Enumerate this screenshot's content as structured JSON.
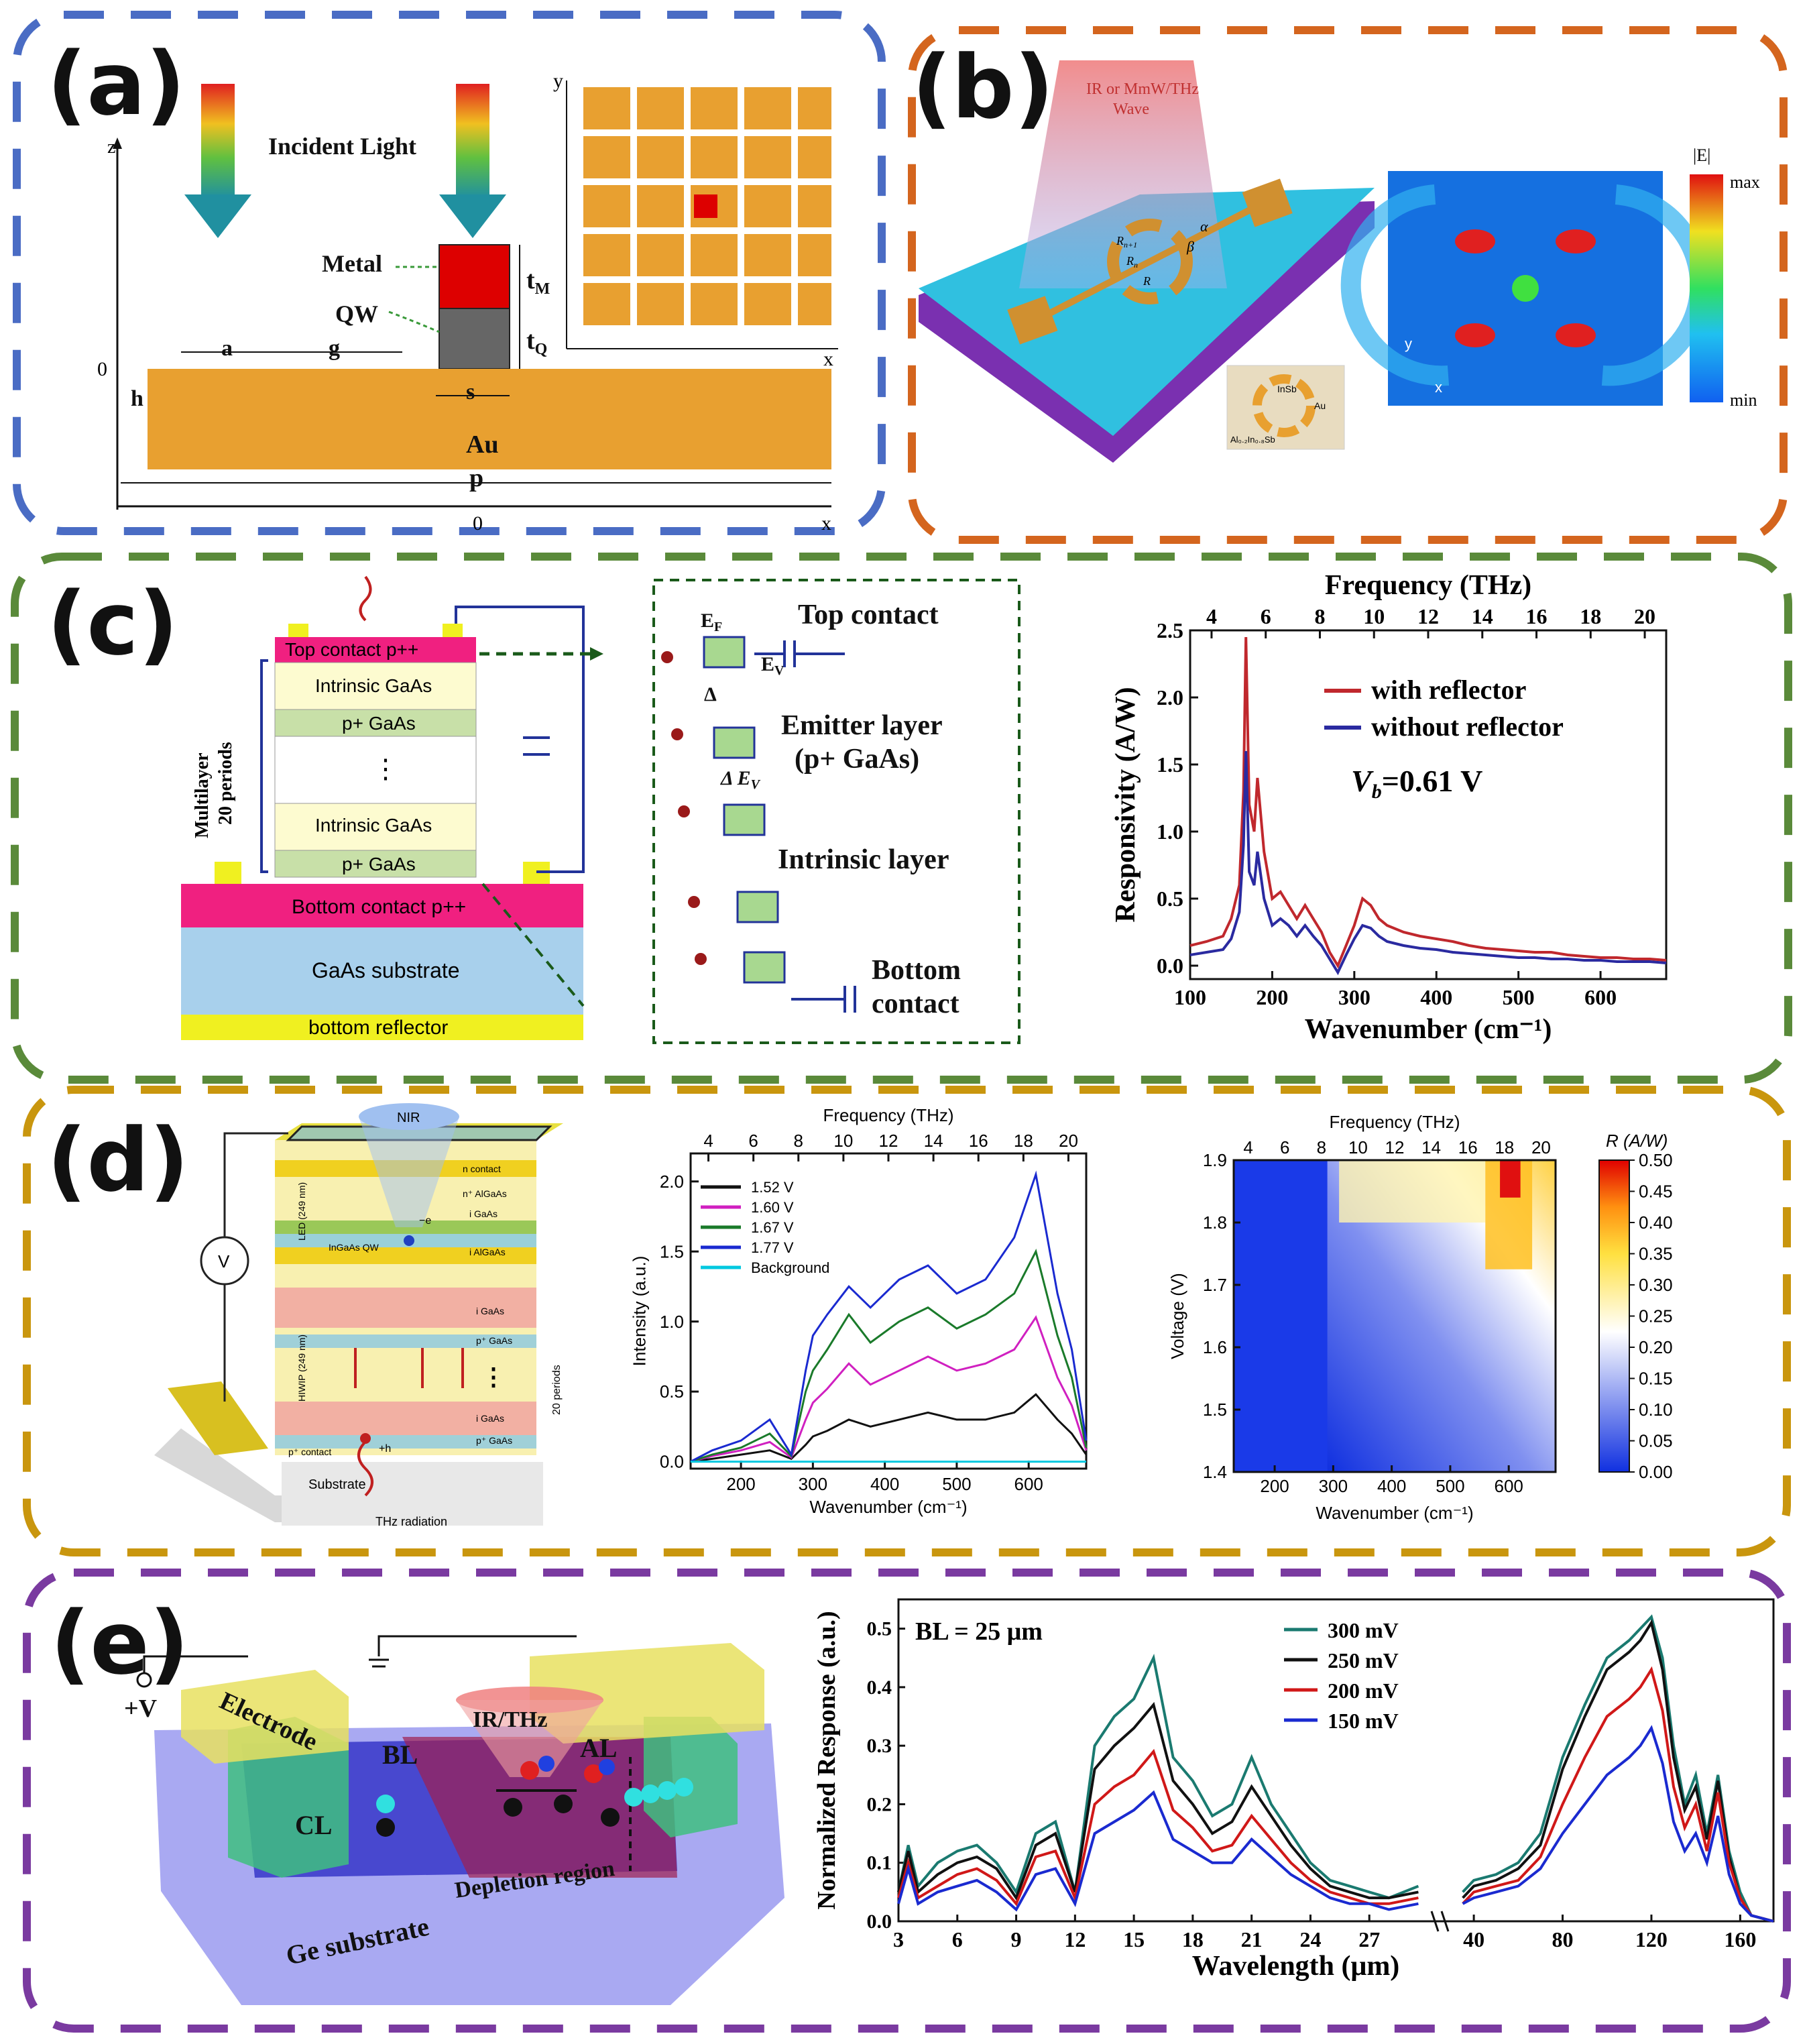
{
  "panels": {
    "a": {
      "label": "(a)",
      "incident_light": "Incident Light",
      "metal": "Metal",
      "qw": "QW",
      "au": "Au",
      "axis": {
        "z": "z",
        "zero": "0",
        "x": "x",
        "x_zero": "0",
        "y": "y",
        "inset_x": "x"
      },
      "dims": {
        "a": "a",
        "g": "g",
        "h": "h",
        "s": "s",
        "p": "p",
        "tM": "t",
        "tM_sub": "M",
        "tQ": "t",
        "tQ_sub": "Q"
      }
    },
    "b": {
      "label": "(b)",
      "wave": [
        "IR or MmW/THz",
        "Wave"
      ],
      "params": {
        "alpha": "α",
        "beta": "β",
        "rn": "R",
        "rn_sub": "n+1",
        "r0": "R",
        "r0_sub": "n",
        "r": "R"
      },
      "inset": {
        "insb": "InSb",
        "au": "Au",
        "al": "Al₀.₂In₀.₈Sb"
      },
      "field_title": "|E|",
      "field_max": "max",
      "field_min": "min",
      "axis_x": "x",
      "axis_y": "y"
    },
    "c": {
      "label": "(c)",
      "layers": {
        "top_contact": "Top contact p++",
        "intrinsic1": "Intrinsic GaAs",
        "p1": "p+ GaAs",
        "dots": "⋮",
        "intrinsic2": "Intrinsic GaAs",
        "p2": "p+ GaAs",
        "bottom_contact": "Bottom contact p++",
        "substrate": "GaAs substrate",
        "reflector": "bottom reflector"
      },
      "multilayer": [
        "Multilayer",
        "20 periods"
      ],
      "band": {
        "top_contact": "Top contact",
        "emitter": [
          "Emitter layer",
          "(p+ GaAs)"
        ],
        "intrinsic": "Intrinsic layer",
        "bottom": [
          "Bottom",
          "contact"
        ],
        "ef": "E",
        "ef_sub": "F",
        "ev": "E",
        "ev_sub": "V",
        "delta": "Δ",
        "delta_ev": "Δ E",
        "delta_ev_sub": "V"
      }
    },
    "d": {
      "label": "(d)",
      "device": {
        "nir": "NIR",
        "v": "V",
        "n_contact": "n contact",
        "n_algaas": "n⁺ AlGaAs",
        "igaas": "i GaAs",
        "ingaas_qw": "InGaAs QW",
        "i_algaas": "i AlGaAs",
        "pgaas": "p⁺ GaAs",
        "led": "LED (249 nm)",
        "hiwip": "HIWIP (249 nm)",
        "periods": "20 periods",
        "p_contact": "p⁺ contact",
        "substrate": "Substrate",
        "thz": "THz radiation",
        "e": "−e",
        "h": "+h"
      }
    },
    "e": {
      "label": "(e)",
      "device": {
        "v": "+V",
        "electrode": "Electrode",
        "bl": "BL",
        "cl": "CL",
        "al": "AL",
        "irthz": "IR/THz",
        "depletion": "Depletion region",
        "substrate": "Ge substrate"
      }
    }
  },
  "colors": {
    "frame_a": "#4a6cc4",
    "frame_b": "#d4651e",
    "frame_c": "#5a8a3a",
    "frame_d": "#c9960e",
    "frame_e": "#7a3aa0",
    "gold": "#e8a030",
    "metal_red": "#dd0000",
    "qw_gray": "#666666"
  },
  "chart_data": [
    {
      "id": "c",
      "type": "line",
      "title": "",
      "xlabel": "Wavenumber (cm⁻¹)",
      "ylabel": "Responsivity (A/W)",
      "top_xlabel": "Frequency (THz)",
      "xlim": [
        100,
        680
      ],
      "ylim": [
        -0.1,
        2.5
      ],
      "xticks": [
        100,
        200,
        300,
        400,
        500,
        600
      ],
      "yticks": [
        0.0,
        0.5,
        1.0,
        1.5,
        2.0,
        2.5
      ],
      "top_ticks": [
        4,
        6,
        8,
        10,
        12,
        14,
        16,
        18,
        20
      ],
      "annotation": "V",
      "annotation_sub": "b",
      "annotation_rest": "=0.61 V",
      "series": [
        {
          "name": "with reflector",
          "color": "#c0282d",
          "x": [
            100,
            120,
            140,
            150,
            160,
            165,
            168,
            172,
            178,
            182,
            190,
            200,
            210,
            220,
            230,
            240,
            250,
            260,
            270,
            280,
            290,
            300,
            310,
            320,
            330,
            340,
            360,
            380,
            400,
            420,
            440,
            460,
            480,
            500,
            520,
            540,
            560,
            580,
            600,
            620,
            640,
            660,
            680
          ],
          "y": [
            0.15,
            0.18,
            0.22,
            0.35,
            0.6,
            1.3,
            2.45,
            1.2,
            1.0,
            1.4,
            0.85,
            0.5,
            0.55,
            0.45,
            0.35,
            0.45,
            0.35,
            0.25,
            0.1,
            0.0,
            0.15,
            0.3,
            0.5,
            0.45,
            0.35,
            0.3,
            0.25,
            0.22,
            0.2,
            0.18,
            0.15,
            0.13,
            0.12,
            0.11,
            0.1,
            0.1,
            0.08,
            0.07,
            0.06,
            0.06,
            0.05,
            0.05,
            0.04
          ]
        },
        {
          "name": "without reflector",
          "color": "#2a2aa0",
          "x": [
            100,
            120,
            140,
            150,
            160,
            165,
            168,
            172,
            178,
            182,
            190,
            200,
            210,
            220,
            230,
            240,
            250,
            260,
            270,
            280,
            290,
            300,
            310,
            320,
            330,
            340,
            360,
            380,
            400,
            420,
            440,
            460,
            480,
            500,
            520,
            540,
            560,
            580,
            600,
            620,
            640,
            660,
            680
          ],
          "y": [
            0.08,
            0.1,
            0.12,
            0.2,
            0.4,
            0.9,
            1.6,
            0.7,
            0.6,
            0.85,
            0.5,
            0.3,
            0.35,
            0.3,
            0.22,
            0.3,
            0.22,
            0.15,
            0.05,
            -0.05,
            0.08,
            0.2,
            0.3,
            0.28,
            0.22,
            0.18,
            0.15,
            0.13,
            0.12,
            0.1,
            0.09,
            0.08,
            0.07,
            0.06,
            0.06,
            0.05,
            0.05,
            0.04,
            0.04,
            0.03,
            0.03,
            0.03,
            0.02
          ]
        }
      ]
    },
    {
      "id": "d1",
      "type": "line",
      "xlabel": "Wavenumber (cm⁻¹)",
      "ylabel": "Intensity (a.u.)",
      "top_xlabel": "Frequency (THz)",
      "xlim": [
        130,
        680
      ],
      "ylim": [
        -0.05,
        2.2
      ],
      "xticks": [
        200,
        300,
        400,
        500,
        600
      ],
      "yticks": [
        0.0,
        0.5,
        1.0,
        1.5,
        2.0
      ],
      "top_ticks": [
        4,
        6,
        8,
        10,
        12,
        14,
        16,
        18,
        20
      ],
      "series": [
        {
          "name": "1.52 V",
          "color": "#111111",
          "x": [
            130,
            160,
            200,
            240,
            270,
            290,
            300,
            320,
            350,
            380,
            420,
            460,
            500,
            540,
            580,
            610,
            640,
            660,
            680
          ],
          "y": [
            0.0,
            0.02,
            0.05,
            0.08,
            0.02,
            0.12,
            0.18,
            0.22,
            0.3,
            0.25,
            0.3,
            0.35,
            0.3,
            0.3,
            0.35,
            0.48,
            0.3,
            0.2,
            0.05
          ]
        },
        {
          "name": "1.60 V",
          "color": "#d020c0",
          "x": [
            130,
            160,
            200,
            240,
            270,
            290,
            300,
            320,
            350,
            380,
            420,
            460,
            500,
            540,
            580,
            610,
            640,
            660,
            680
          ],
          "y": [
            0.0,
            0.04,
            0.08,
            0.14,
            0.03,
            0.3,
            0.42,
            0.52,
            0.7,
            0.55,
            0.65,
            0.75,
            0.65,
            0.7,
            0.8,
            1.03,
            0.6,
            0.4,
            0.08
          ]
        },
        {
          "name": "1.67 V",
          "color": "#1a7a2a",
          "x": [
            130,
            160,
            200,
            240,
            270,
            290,
            300,
            320,
            350,
            380,
            420,
            460,
            500,
            540,
            580,
            610,
            640,
            660,
            680
          ],
          "y": [
            0.0,
            0.05,
            0.1,
            0.2,
            0.04,
            0.5,
            0.65,
            0.8,
            1.05,
            0.85,
            1.0,
            1.1,
            0.95,
            1.05,
            1.2,
            1.5,
            0.9,
            0.6,
            0.1
          ]
        },
        {
          "name": "1.77 V",
          "color": "#1a2ad0",
          "x": [
            130,
            160,
            200,
            240,
            270,
            290,
            300,
            320,
            350,
            380,
            420,
            460,
            500,
            540,
            580,
            610,
            640,
            660,
            680
          ],
          "y": [
            0.0,
            0.08,
            0.15,
            0.3,
            0.05,
            0.65,
            0.9,
            1.05,
            1.25,
            1.1,
            1.3,
            1.4,
            1.2,
            1.3,
            1.6,
            2.05,
            1.2,
            0.8,
            0.15
          ]
        },
        {
          "name": "Background",
          "color": "#00c8e0",
          "x": [
            130,
            680
          ],
          "y": [
            0.0,
            0.0
          ]
        }
      ]
    },
    {
      "id": "d2",
      "type": "heatmap",
      "xlabel": "Wavenumber (cm⁻¹)",
      "ylabel": "Voltage (V)",
      "top_xlabel": "Frequency (THz)",
      "colorbar_label": "R (A/W)",
      "xlim": [
        130,
        680
      ],
      "ylim": [
        1.4,
        1.9
      ],
      "xticks": [
        200,
        300,
        400,
        500,
        600
      ],
      "yticks": [
        1.4,
        1.5,
        1.6,
        1.7,
        1.8,
        1.9
      ],
      "top_ticks": [
        4,
        6,
        8,
        10,
        12,
        14,
        16,
        18,
        20
      ],
      "cbar_ticks": [
        0.0,
        0.05,
        0.1,
        0.15,
        0.2,
        0.25,
        0.3,
        0.35,
        0.4,
        0.45,
        0.5
      ],
      "clim": [
        0,
        0.5
      ]
    },
    {
      "id": "e",
      "type": "line",
      "xlabel": "Wavelength (μm)",
      "ylabel": "Normalized Response (a.u.)",
      "annotation": "BL = 25 μm",
      "xticks_left": [
        3,
        6,
        9,
        12,
        15,
        18,
        21,
        24,
        27
      ],
      "xticks_right": [
        40,
        80,
        120,
        160
      ],
      "xlim_left": [
        3,
        30
      ],
      "xlim_right": [
        30,
        175
      ],
      "ylim": [
        0.0,
        0.55
      ],
      "yticks": [
        0.0,
        0.1,
        0.2,
        0.3,
        0.4,
        0.5
      ],
      "series": [
        {
          "name": "300 mV",
          "color": "#1a7a70",
          "x": [
            3,
            3.5,
            4,
            5,
            6,
            7,
            8,
            9,
            10,
            11,
            12,
            13,
            14,
            15,
            16,
            17,
            18,
            19,
            20,
            21,
            22,
            23,
            24,
            25,
            26,
            27,
            28,
            29.5
          ],
          "y": [
            0.05,
            0.13,
            0.06,
            0.1,
            0.12,
            0.13,
            0.1,
            0.05,
            0.15,
            0.17,
            0.05,
            0.3,
            0.35,
            0.38,
            0.45,
            0.28,
            0.24,
            0.18,
            0.2,
            0.28,
            0.2,
            0.15,
            0.1,
            0.07,
            0.06,
            0.05,
            0.04,
            0.06
          ],
          "x2": [
            35,
            40,
            50,
            60,
            70,
            80,
            90,
            100,
            110,
            115,
            120,
            125,
            130,
            135,
            140,
            145,
            150,
            155,
            160,
            165,
            175
          ],
          "y2": [
            0.05,
            0.07,
            0.08,
            0.1,
            0.15,
            0.28,
            0.37,
            0.45,
            0.48,
            0.5,
            0.52,
            0.45,
            0.3,
            0.2,
            0.25,
            0.15,
            0.25,
            0.12,
            0.05,
            0.01,
            0.0
          ]
        },
        {
          "name": "250 mV",
          "color": "#111111",
          "x": [
            3,
            3.5,
            4,
            5,
            6,
            7,
            8,
            9,
            10,
            11,
            12,
            13,
            14,
            15,
            16,
            17,
            18,
            19,
            20,
            21,
            22,
            23,
            24,
            25,
            26,
            27,
            28,
            29.5
          ],
          "y": [
            0.05,
            0.12,
            0.05,
            0.08,
            0.1,
            0.11,
            0.09,
            0.04,
            0.13,
            0.15,
            0.05,
            0.26,
            0.3,
            0.33,
            0.37,
            0.24,
            0.2,
            0.15,
            0.17,
            0.23,
            0.18,
            0.13,
            0.09,
            0.06,
            0.05,
            0.04,
            0.04,
            0.05
          ],
          "x2": [
            35,
            40,
            50,
            60,
            70,
            80,
            90,
            100,
            110,
            115,
            120,
            125,
            130,
            135,
            140,
            145,
            150,
            155,
            160,
            165,
            175
          ],
          "y2": [
            0.04,
            0.06,
            0.07,
            0.09,
            0.13,
            0.26,
            0.35,
            0.43,
            0.46,
            0.48,
            0.51,
            0.43,
            0.28,
            0.19,
            0.23,
            0.14,
            0.24,
            0.11,
            0.04,
            0.01,
            0.0
          ]
        },
        {
          "name": "200 mV",
          "color": "#d01818",
          "x": [
            3,
            3.5,
            4,
            5,
            6,
            7,
            8,
            9,
            10,
            11,
            12,
            13,
            14,
            15,
            16,
            17,
            18,
            19,
            20,
            21,
            22,
            23,
            24,
            25,
            26,
            27,
            28,
            29.5
          ],
          "y": [
            0.04,
            0.1,
            0.04,
            0.06,
            0.08,
            0.09,
            0.07,
            0.03,
            0.11,
            0.12,
            0.04,
            0.2,
            0.23,
            0.25,
            0.29,
            0.19,
            0.16,
            0.12,
            0.13,
            0.18,
            0.14,
            0.1,
            0.07,
            0.05,
            0.04,
            0.03,
            0.03,
            0.04
          ],
          "x2": [
            35,
            40,
            50,
            60,
            70,
            80,
            90,
            100,
            110,
            115,
            120,
            125,
            130,
            135,
            140,
            145,
            150,
            155,
            160,
            165,
            175
          ],
          "y2": [
            0.03,
            0.05,
            0.06,
            0.07,
            0.11,
            0.2,
            0.28,
            0.35,
            0.38,
            0.4,
            0.43,
            0.36,
            0.23,
            0.16,
            0.2,
            0.12,
            0.22,
            0.1,
            0.04,
            0.01,
            0.0
          ]
        },
        {
          "name": "150 mV",
          "color": "#1a2ad0",
          "x": [
            3,
            3.5,
            4,
            5,
            6,
            7,
            8,
            9,
            10,
            11,
            12,
            13,
            14,
            15,
            16,
            17,
            18,
            19,
            20,
            21,
            22,
            23,
            24,
            25,
            26,
            27,
            28,
            29.5
          ],
          "y": [
            0.03,
            0.09,
            0.03,
            0.05,
            0.06,
            0.07,
            0.05,
            0.02,
            0.08,
            0.09,
            0.03,
            0.15,
            0.17,
            0.19,
            0.22,
            0.14,
            0.12,
            0.1,
            0.1,
            0.14,
            0.11,
            0.08,
            0.06,
            0.04,
            0.03,
            0.03,
            0.02,
            0.03
          ],
          "x2": [
            35,
            40,
            50,
            60,
            70,
            80,
            90,
            100,
            110,
            115,
            120,
            125,
            130,
            135,
            140,
            145,
            150,
            155,
            160,
            165,
            175
          ],
          "y2": [
            0.03,
            0.04,
            0.05,
            0.06,
            0.09,
            0.15,
            0.2,
            0.25,
            0.28,
            0.3,
            0.33,
            0.27,
            0.17,
            0.12,
            0.15,
            0.1,
            0.18,
            0.08,
            0.03,
            0.01,
            0.0
          ]
        }
      ]
    }
  ]
}
